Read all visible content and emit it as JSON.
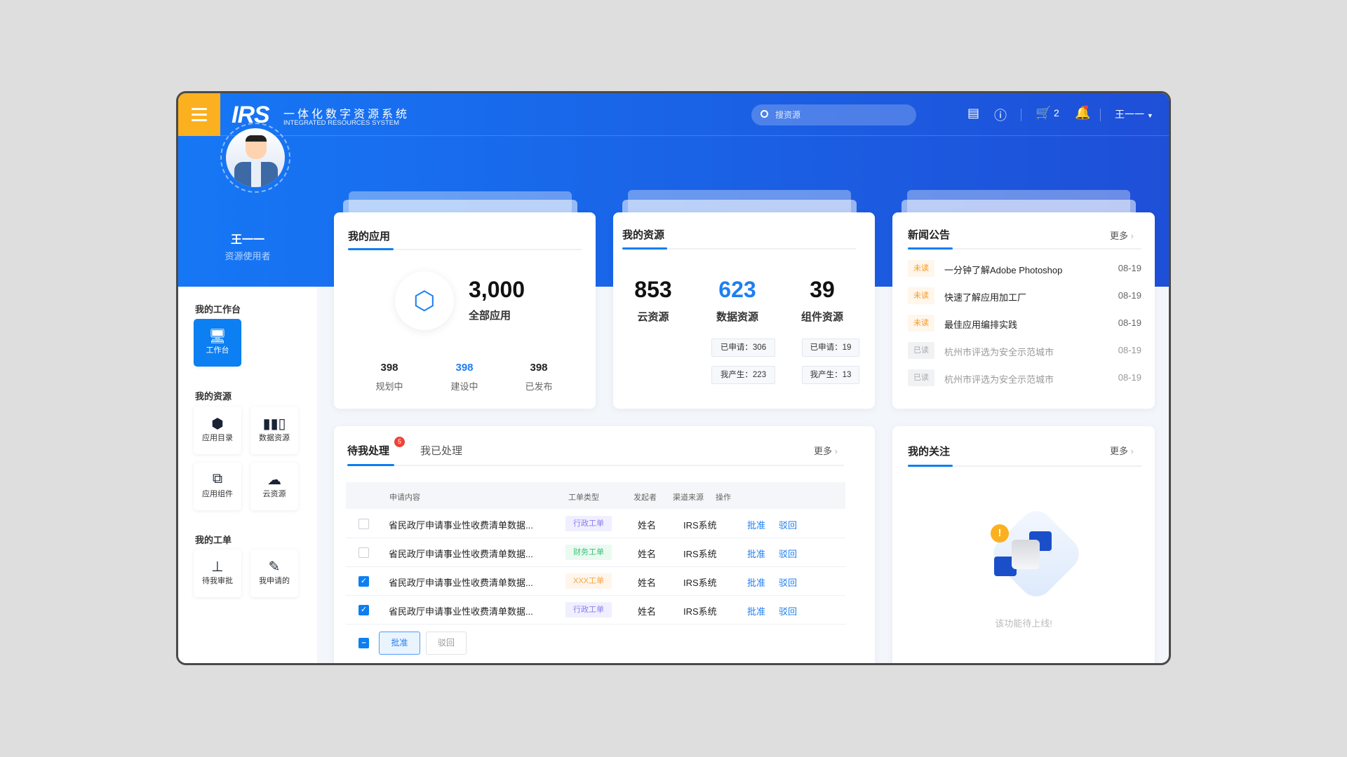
{
  "header": {
    "logo_mark": "IRS",
    "logo_cn": "一体化数字资源系统",
    "logo_en": "INTEGRATED RESOURCES SYSTEM",
    "search_placeholder": "搜资源",
    "cart_count": "2",
    "user": "王一一",
    "icons": [
      "menu-icon",
      "clipboard-icon",
      "info-icon",
      "cart-icon",
      "bell-icon",
      "caret-down-icon"
    ]
  },
  "profile": {
    "name": "王一一",
    "role": "资源使用者"
  },
  "sidebar": {
    "sections": [
      {
        "title": "我的工作台",
        "items": [
          {
            "label": "工作台",
            "icon": "monitor-icon",
            "active": true
          }
        ]
      },
      {
        "title": "我的资源",
        "items": [
          {
            "label": "应用目录",
            "icon": "cube-icon"
          },
          {
            "label": "数据资源",
            "icon": "books-icon"
          },
          {
            "label": "应用组件",
            "icon": "sliders-icon"
          },
          {
            "label": "云资源",
            "icon": "cloud-icon"
          }
        ]
      },
      {
        "title": "我的工单",
        "items": [
          {
            "label": "待我审批",
            "icon": "stamp-icon"
          },
          {
            "label": "我申请的",
            "icon": "edit-note-icon"
          }
        ]
      }
    ]
  },
  "my_apps": {
    "title": "我的应用",
    "total": "3,000",
    "total_label": "全部应用",
    "stats": [
      {
        "value": "398",
        "label": "规划中"
      },
      {
        "value": "398",
        "label": "建设中"
      },
      {
        "value": "398",
        "label": "已发布"
      }
    ]
  },
  "my_resources": {
    "title": "我的资源",
    "items": [
      {
        "value": "853",
        "label": "云资源"
      },
      {
        "value": "623",
        "label": "数据资源",
        "applied": "已申请：306",
        "produced": "我产生：223"
      },
      {
        "value": "39",
        "label": "组件资源",
        "applied": "已申请：19",
        "produced": "我产生：13"
      }
    ]
  },
  "news": {
    "title": "新闻公告",
    "more": "更多",
    "items": [
      {
        "status": "未读",
        "title": "一分钟了解Adobe Photoshop",
        "date": "08-19"
      },
      {
        "status": "未读",
        "title": "快速了解应用加工厂",
        "date": "08-19"
      },
      {
        "status": "未读",
        "title": "最佳应用编排实践",
        "date": "08-19"
      },
      {
        "status": "已读",
        "title": "杭州市评选为安全示范城市",
        "date": "08-19"
      },
      {
        "status": "已读",
        "title": "杭州市评选为安全示范城市",
        "date": "08-19"
      }
    ]
  },
  "tasks": {
    "tabs": [
      {
        "label": "待我处理",
        "badge": "5"
      },
      {
        "label": "我已处理"
      }
    ],
    "more": "更多",
    "columns": [
      "申请内容",
      "工单类型",
      "发起者",
      "渠道来源",
      "操作"
    ],
    "rows": [
      {
        "checked": false,
        "content": "省民政厅申请事业性收费清单数据...",
        "type": "行政工单",
        "initiator": "姓名",
        "source": "IRS系统",
        "approve": "批准",
        "reject": "驳回"
      },
      {
        "checked": false,
        "content": "省民政厅申请事业性收费清单数据...",
        "type": "财务工单",
        "initiator": "姓名",
        "source": "IRS系统",
        "approve": "批准",
        "reject": "驳回"
      },
      {
        "checked": true,
        "content": "省民政厅申请事业性收费清单数据...",
        "type": "XXX工单",
        "initiator": "姓名",
        "source": "IRS系统",
        "approve": "批准",
        "reject": "驳回"
      },
      {
        "checked": true,
        "content": "省民政厅申请事业性收费清单数据...",
        "type": "行政工单",
        "initiator": "姓名",
        "source": "IRS系统",
        "approve": "批准",
        "reject": "驳回"
      }
    ],
    "bulk_approve": "批准",
    "bulk_reject": "驳回"
  },
  "follow": {
    "title": "我的关注",
    "more": "更多",
    "empty_text": "该功能待上线!"
  },
  "colors": {
    "primary": "#0c7ff2",
    "accent": "#fbb020",
    "hero_start": "#1677f5",
    "hero_end": "#1e4fd8",
    "badge": "#f04134"
  }
}
